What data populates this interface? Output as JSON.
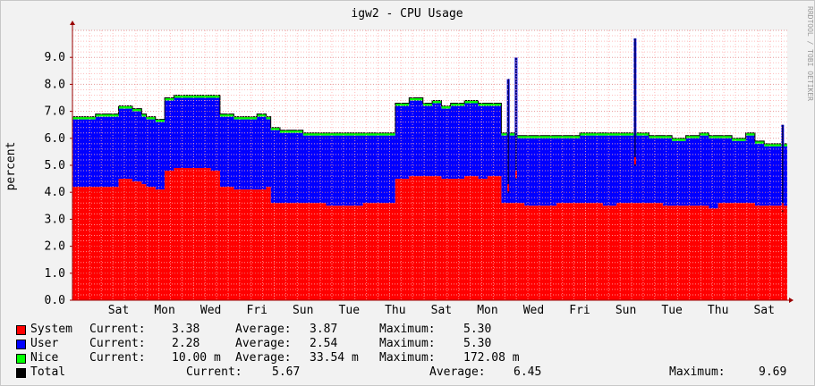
{
  "chart_data": {
    "type": "area",
    "title": "igw2 - CPU Usage",
    "ylabel": "percent",
    "side_label": "RRDTOOL / TOBI OETIKER",
    "ylim": [
      0,
      10
    ],
    "yticks": [
      "0.0",
      "1.0",
      "2.0",
      "3.0",
      "4.0",
      "5.0",
      "6.0",
      "7.0",
      "8.0",
      "9.0"
    ],
    "xticks": [
      "Sat",
      "Mon",
      "Wed",
      "Fri",
      "Sun",
      "Tue",
      "Thu",
      "Sat",
      "Mon",
      "Wed",
      "Fri",
      "Sun",
      "Tue",
      "Thu",
      "Sat"
    ],
    "grid": true,
    "stacked": true,
    "colors": {
      "system": "#ff0000",
      "user": "#0000ff",
      "nice": "#00ff00",
      "total": "#000000",
      "grid_minor": "#ffb0b0",
      "grid_major": "#e08080",
      "axis": "#990000",
      "bg": "#f2f2f2",
      "plot": "#ffffff"
    },
    "x_days": [
      0,
      0.5,
      1,
      1.3,
      1.4,
      1.5,
      1.6,
      1.8,
      2,
      2.2,
      2.5,
      2.8,
      3,
      3.2,
      3.5,
      3.8,
      4,
      4.2,
      4.3,
      4.5,
      4.8,
      5,
      5.3,
      5.5,
      5.8,
      6,
      6.3,
      6.5,
      6.8,
      7,
      7.3,
      7.6,
      7.8,
      8,
      8.2,
      8.5,
      8.8,
      9,
      9.3,
      9.6,
      9.8,
      10,
      10.5,
      11,
      11.3,
      11.5,
      11.8,
      12,
      12.2,
      12.5,
      12.8,
      13,
      13.3,
      13.6,
      13.8,
      14,
      14.3,
      14.6,
      14.8,
      15,
      15.5
    ],
    "series": [
      {
        "name": "System",
        "values": [
          4.2,
          4.2,
          4.5,
          4.4,
          4.4,
          4.3,
          4.2,
          4.1,
          4.8,
          4.9,
          4.9,
          4.9,
          4.8,
          4.2,
          4.1,
          4.1,
          4.1,
          4.2,
          3.6,
          3.6,
          3.6,
          3.6,
          3.6,
          3.5,
          3.5,
          3.5,
          3.6,
          3.6,
          3.6,
          4.5,
          4.6,
          4.6,
          4.6,
          4.5,
          4.5,
          4.6,
          4.5,
          4.6,
          3.6,
          3.6,
          3.5,
          3.5,
          3.6,
          3.6,
          3.6,
          3.5,
          3.6,
          3.6,
          3.6,
          3.6,
          3.5,
          3.5,
          3.5,
          3.5,
          3.4,
          3.6,
          3.6,
          3.6,
          3.5,
          3.5,
          3.4
        ]
      },
      {
        "name": "User",
        "values": [
          2.5,
          2.6,
          2.6,
          2.6,
          2.6,
          2.5,
          2.5,
          2.5,
          2.6,
          2.6,
          2.6,
          2.6,
          2.7,
          2.6,
          2.6,
          2.6,
          2.7,
          2.5,
          2.7,
          2.6,
          2.6,
          2.5,
          2.5,
          2.6,
          2.6,
          2.6,
          2.5,
          2.5,
          2.5,
          2.7,
          2.8,
          2.6,
          2.7,
          2.6,
          2.7,
          2.7,
          2.7,
          2.6,
          2.5,
          2.4,
          2.5,
          2.5,
          2.4,
          2.5,
          2.5,
          2.6,
          2.5,
          2.5,
          2.5,
          2.4,
          2.5,
          2.4,
          2.5,
          2.6,
          2.6,
          2.4,
          2.3,
          2.5,
          2.3,
          2.2,
          2.3
        ]
      },
      {
        "name": "Nice",
        "values": [
          0.1,
          0.1,
          0.1,
          0.1,
          0.1,
          0.1,
          0.1,
          0.1,
          0.1,
          0.1,
          0.1,
          0.1,
          0.1,
          0.1,
          0.1,
          0.1,
          0.1,
          0.1,
          0.1,
          0.1,
          0.1,
          0.1,
          0.1,
          0.1,
          0.1,
          0.1,
          0.1,
          0.1,
          0.1,
          0.1,
          0.1,
          0.1,
          0.1,
          0.1,
          0.1,
          0.1,
          0.1,
          0.1,
          0.1,
          0.1,
          0.1,
          0.1,
          0.1,
          0.1,
          0.1,
          0.1,
          0.1,
          0.1,
          0.1,
          0.1,
          0.1,
          0.1,
          0.1,
          0.1,
          0.1,
          0.1,
          0.1,
          0.1,
          0.1,
          0.1,
          0.1
        ]
      }
    ],
    "spikes": [
      {
        "day": 9.45,
        "total": 8.2,
        "system": 4.3
      },
      {
        "day": 9.62,
        "total": 9.0,
        "system": 4.8
      },
      {
        "day": 12.2,
        "total": 9.7,
        "system": 5.3
      },
      {
        "day": 15.4,
        "total": 6.5,
        "system": 3.6
      }
    ]
  },
  "legend": [
    {
      "name": "System",
      "current_label": "Current:",
      "current": "3.38",
      "average_label": "Average:",
      "average": "3.87",
      "maximum_label": "Maximum:",
      "maximum": "5.30"
    },
    {
      "name": "User",
      "current_label": "Current:",
      "current": "2.28",
      "average_label": "Average:",
      "average": "2.54",
      "maximum_label": "Maximum:",
      "maximum": "5.30"
    },
    {
      "name": "Nice",
      "current_label": "Current:",
      "current": "10.00 m",
      "average_label": "Average:",
      "average": "33.54 m",
      "maximum_label": "Maximum:",
      "maximum": "172.08 m"
    },
    {
      "name": "Total",
      "current_label": "Current:",
      "current": "5.67",
      "average_label": "Average:",
      "average": "6.45",
      "maximum_label": "Maximum:",
      "maximum": "9.69"
    }
  ]
}
